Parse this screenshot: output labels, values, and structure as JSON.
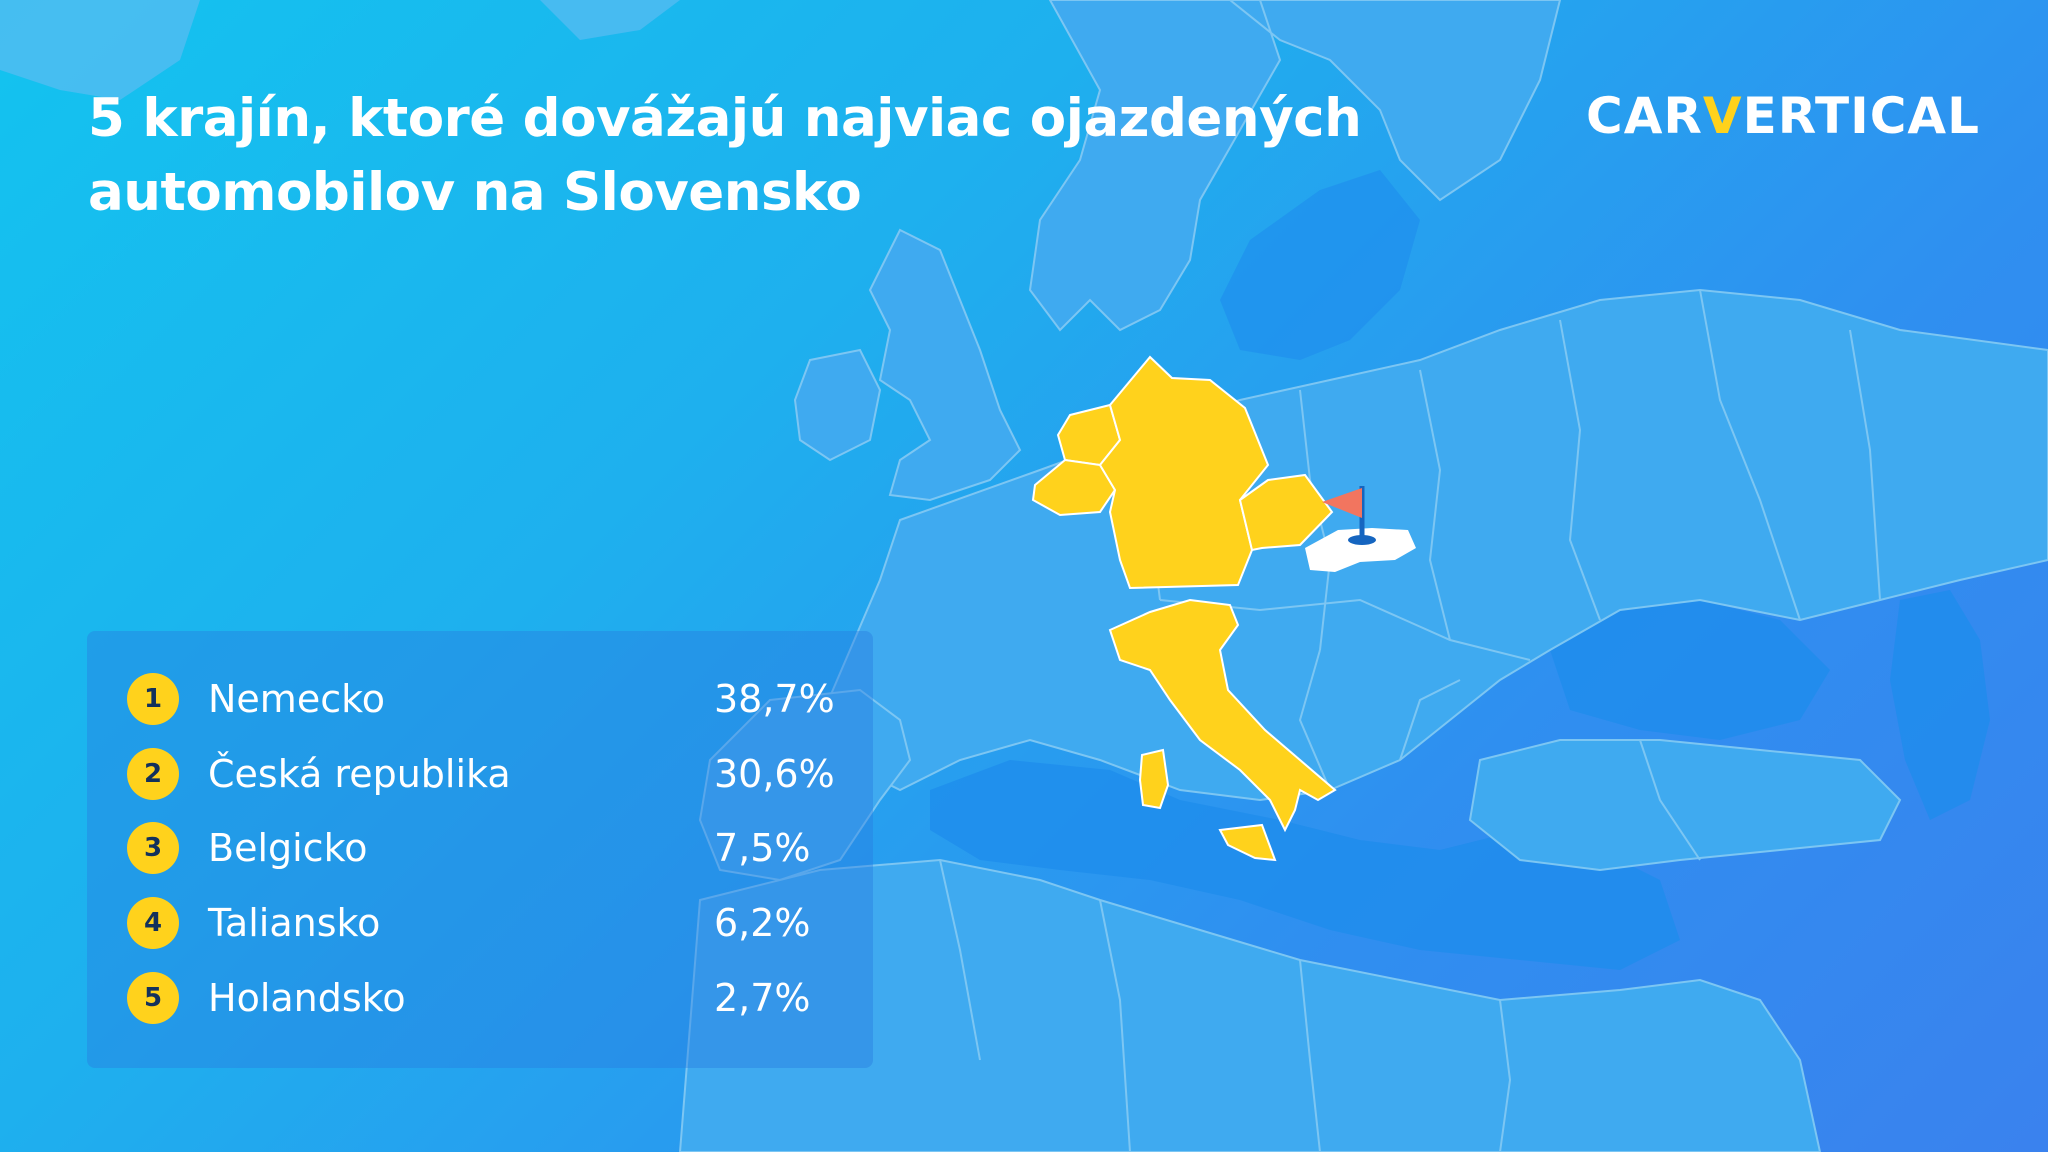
{
  "title": {
    "line1": "5 krajín, ktoré dovážajú najviac ojazdených",
    "line2": "automobilov na Slovensko"
  },
  "logo": {
    "part1": "CAR",
    "part2": "V",
    "part3": "ERTICAL"
  },
  "ranking": [
    {
      "rank": "1",
      "country": "Nemecko",
      "share": "38,7%"
    },
    {
      "rank": "2",
      "country": "Česká republika",
      "share": "30,6%"
    },
    {
      "rank": "3",
      "country": "Belgicko",
      "share": "7,5%"
    },
    {
      "rank": "4",
      "country": "Taliansko",
      "share": "6,2%"
    },
    {
      "rank": "5",
      "country": "Holandsko",
      "share": "2,7%"
    }
  ],
  "map": {
    "highlighted_countries": [
      "Germany",
      "Czech Republic",
      "Belgium",
      "Italy",
      "Netherlands"
    ],
    "destination_country": "Slovakia",
    "marker_icon": "flag-icon"
  },
  "colors": {
    "highlight": "#ffd21c",
    "destination": "#ffffff",
    "flag": "#f2755f",
    "sea": "#1f8ff0",
    "land": "#3fa9ef",
    "borders": "#7cc6f3"
  }
}
